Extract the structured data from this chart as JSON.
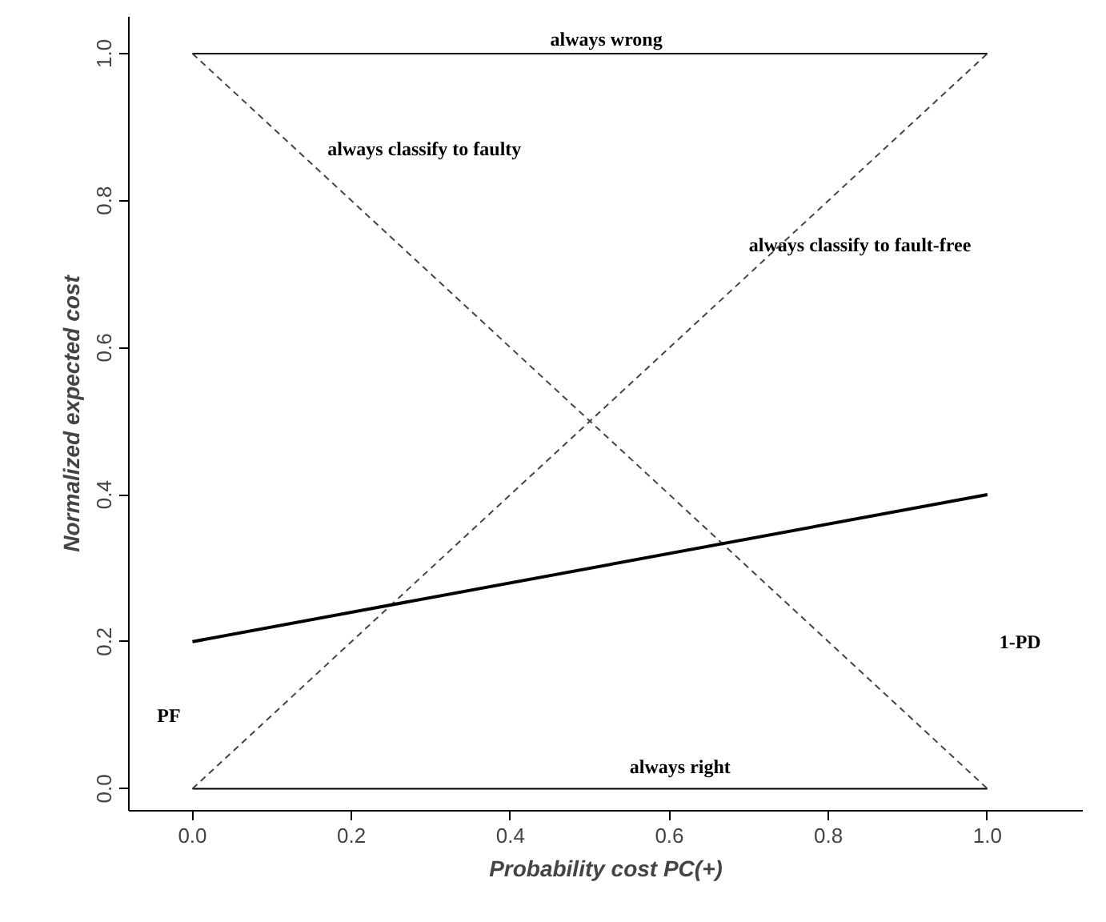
{
  "chart_data": {
    "type": "line",
    "xlabel": "Probability cost PC(+)",
    "ylabel": "Normalized expected cost",
    "xlim": [
      -0.08,
      1.12
    ],
    "ylim": [
      -0.03,
      1.05
    ],
    "xticks": [
      {
        "value": 0,
        "label": "0.0"
      },
      0.2,
      0.4,
      0.6,
      0.8,
      {
        "value": 1,
        "label": "1.0"
      }
    ],
    "yticks": [
      {
        "value": 0,
        "label": "0.0"
      },
      0.2,
      0.4,
      0.6,
      0.8,
      {
        "value": 1,
        "label": "1.0"
      }
    ],
    "grid": false,
    "series": [
      {
        "values": [
          1,
          1
        ],
        "color": "#000000",
        "line_style": "solid"
      },
      {
        "values": [
          0,
          0
        ],
        "color": "#000000",
        "line_style": "solid"
      },
      {
        "values": [
          1,
          0
        ],
        "color": "#444444",
        "line_style": "dashed"
      },
      {
        "values": [
          0,
          1
        ],
        "color": "#444444",
        "line_style": "dashed"
      },
      {
        "values": [
          0.2,
          0.4
        ],
        "color": "#000000",
        "line_style": "solid"
      }
    ],
    "x": [
      0,
      1
    ],
    "annotations": [
      "always wrong",
      "always classify to faulty",
      "always classify to fault-free",
      "always right",
      "PF",
      "1-PD"
    ]
  }
}
